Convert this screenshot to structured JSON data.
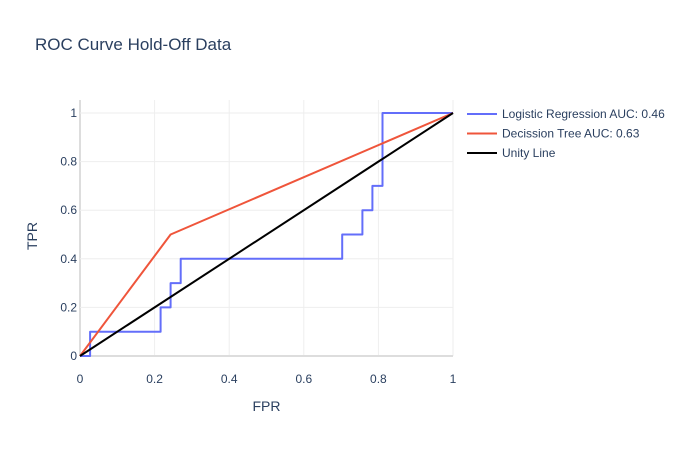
{
  "chart_data": {
    "type": "line",
    "title": "ROC Curve Hold-Off Data",
    "xlabel": "FPR",
    "ylabel": "TPR",
    "xlim": [
      0,
      1
    ],
    "ylim": [
      0,
      1
    ],
    "xticks": [
      0,
      0.2,
      0.4,
      0.6,
      0.8,
      1
    ],
    "xtick_labels": [
      "0",
      "0.2",
      "0.4",
      "0.6",
      "0.8",
      "1"
    ],
    "yticks": [
      0,
      0.2,
      0.4,
      0.6,
      0.8,
      1
    ],
    "ytick_labels": [
      "0",
      "0.2",
      "0.4",
      "0.6",
      "0.8",
      "1"
    ],
    "grid": true,
    "legend_position": "top-right outside",
    "series": [
      {
        "name": "Logistic Regression AUC: 0.46",
        "color": "#636efa",
        "x": [
          0,
          0.027,
          0.027,
          0.216,
          0.216,
          0.243,
          0.243,
          0.27,
          0.27,
          0.703,
          0.703,
          0.757,
          0.757,
          0.784,
          0.784,
          0.811,
          0.811,
          1
        ],
        "y": [
          0,
          0,
          0.1,
          0.1,
          0.2,
          0.2,
          0.3,
          0.3,
          0.4,
          0.4,
          0.5,
          0.5,
          0.6,
          0.6,
          0.7,
          0.7,
          1,
          1
        ]
      },
      {
        "name": "Decission Tree AUC: 0.63",
        "color": "#ef553b",
        "x": [
          0,
          0.243,
          1
        ],
        "y": [
          0,
          0.5,
          1
        ]
      },
      {
        "name": "Unity Line",
        "color": "#000000",
        "x": [
          0,
          1
        ],
        "y": [
          0,
          1
        ]
      }
    ]
  }
}
